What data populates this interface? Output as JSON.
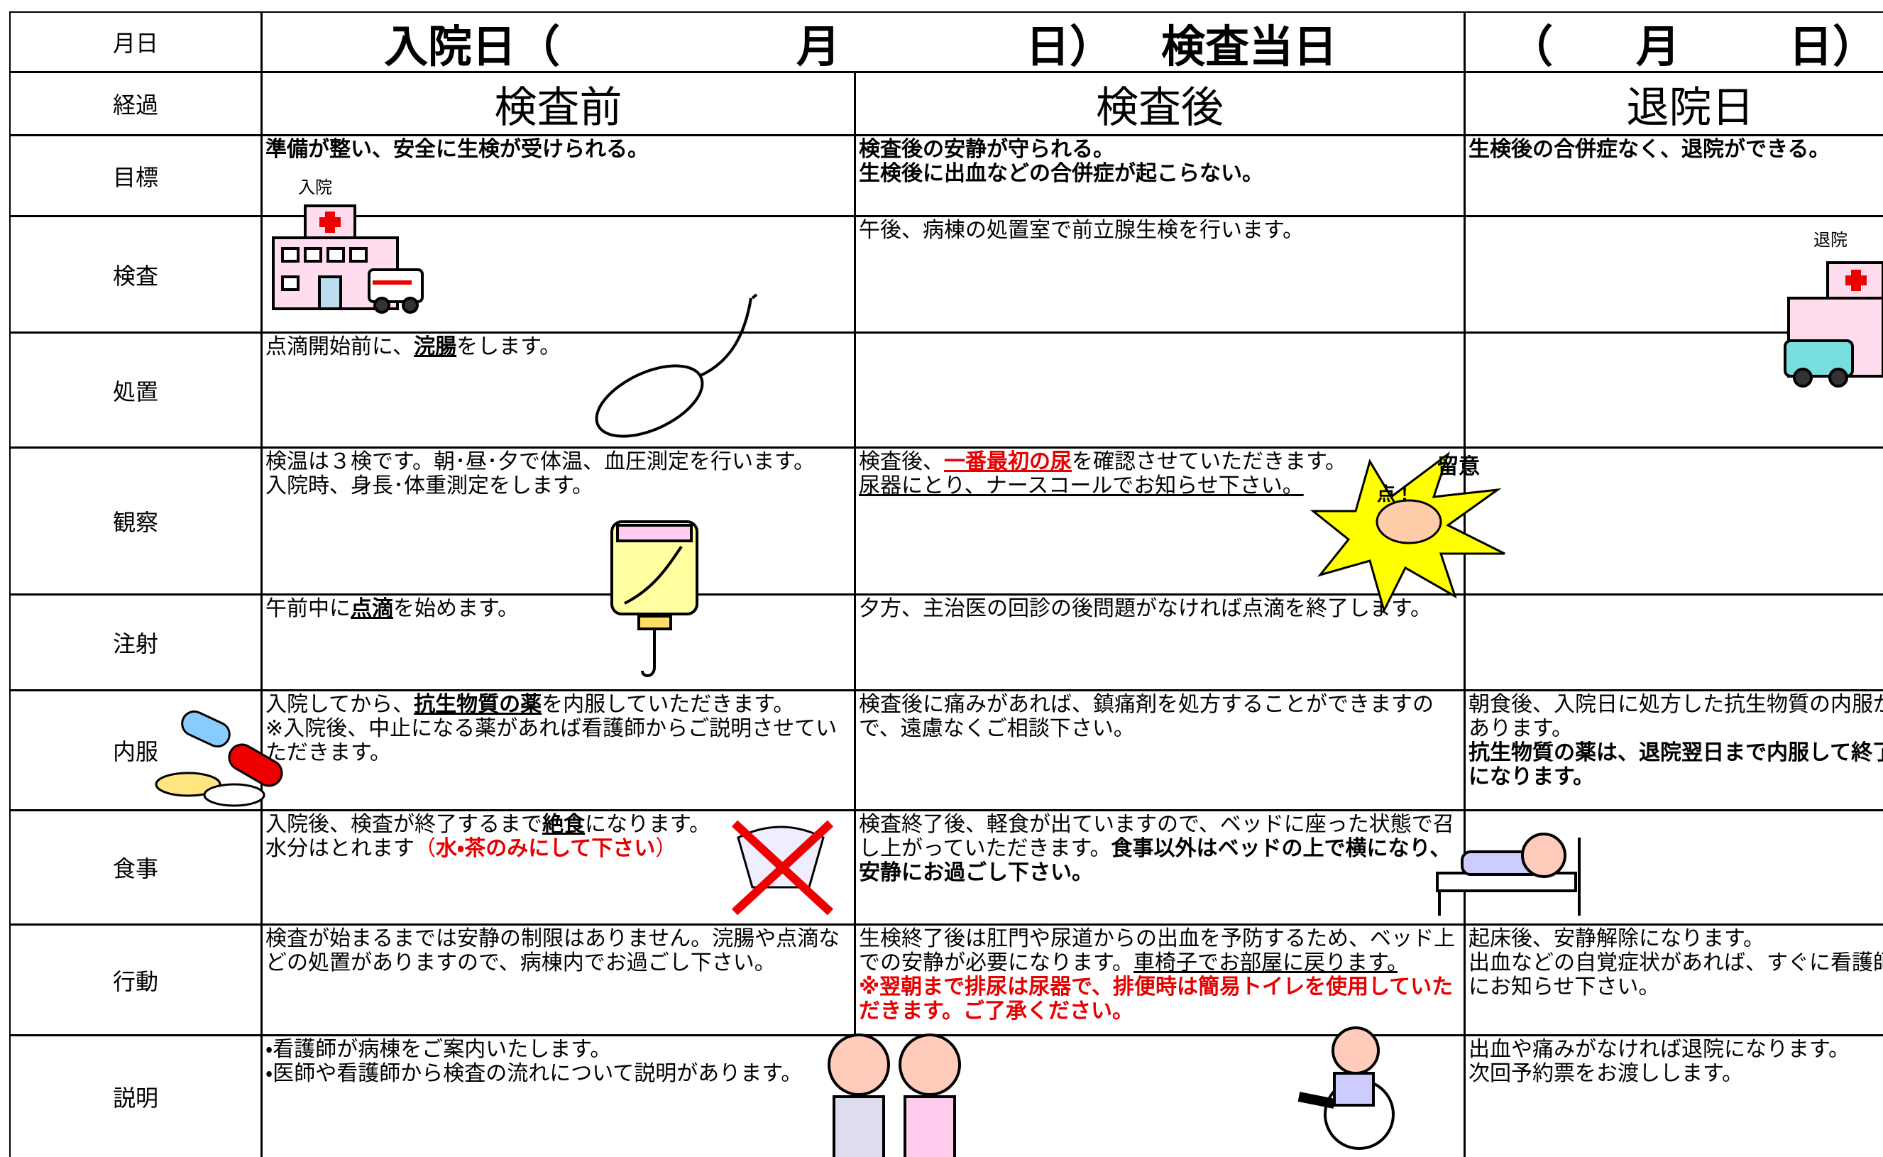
{
  "header": {
    "label": "月日",
    "parts": [
      "入院日（",
      "月",
      "日）",
      "検査当日",
      "（",
      "月",
      "日）"
    ]
  },
  "phase_row": {
    "label": "経過",
    "phases": [
      "検査前",
      "検査後",
      "退院日"
    ]
  },
  "rows": [
    {
      "label": "目標",
      "cells": [
        [
          [
            {
              "text": "準備が整い、安全に生検が受けられる。",
              "bold": true
            }
          ]
        ],
        [
          [
            {
              "text": "検査後の安静が守られる。",
              "bold": true
            }
          ],
          [
            {
              "text": "生検後に出血などの合併症が起こらない。",
              "bold": true
            }
          ]
        ],
        [
          [
            {
              "text": "生検後の合併症なく、退院ができる。",
              "bold": true
            }
          ]
        ]
      ]
    },
    {
      "label": "検査",
      "cells": [
        [],
        [
          [
            {
              "text": "午後、病棟の処置室で前立腺生検を行います。"
            }
          ]
        ],
        []
      ]
    },
    {
      "label": "処置",
      "cells": [
        [
          [
            {
              "text": "点滴開始前に、"
            },
            {
              "text": "浣腸",
              "bold": true,
              "underline": true
            },
            {
              "text": "をします。"
            }
          ]
        ],
        [],
        []
      ]
    },
    {
      "label": "観察",
      "cells": [
        [
          [
            {
              "text": "検温は３検です。朝･昼･夕で体温、血圧測定を行います。"
            }
          ],
          [
            {
              "text": "入院時、身長･体重測定をします。"
            }
          ]
        ],
        [
          [
            {
              "text": "検査後、"
            },
            {
              "text": "一番最初の尿",
              "bold": true,
              "underline": true,
              "red": true
            },
            {
              "text": "を確認させていただきます。"
            }
          ],
          [
            {
              "text": "尿器にとり、ナースコールでお知らせ下さい。",
              "underline": true
            }
          ]
        ],
        []
      ]
    },
    {
      "label": "注射",
      "cells": [
        [
          [
            {
              "text": "午前中に"
            },
            {
              "text": "点滴",
              "bold": true,
              "underline": true
            },
            {
              "text": "を始めます。"
            }
          ]
        ],
        [
          [
            {
              "text": "夕方、主治医の回診の後問題がなければ点滴を終了します。"
            }
          ]
        ],
        []
      ]
    },
    {
      "label": "内服",
      "cells": [
        [
          [
            {
              "text": "入院してから、"
            },
            {
              "text": "抗生物質の薬",
              "bold": true,
              "underline": true
            },
            {
              "text": "を内服していただきます。"
            }
          ],
          [
            {
              "text": "※入院後、中止になる薬があれば看護師からご説明させていただきます。"
            }
          ]
        ],
        [
          [
            {
              "text": "検査後に痛みがあれば、鎮痛剤を処方することができますので、遠慮なくご相談下さい。"
            }
          ]
        ],
        [
          [
            {
              "text": "朝食後、入院日に処方した抗生物質の内服があります。"
            }
          ],
          [
            {
              "text": "抗生物質の薬は、退院翌日まで内服して終了になります。",
              "bold": true
            }
          ]
        ]
      ]
    },
    {
      "label": "食事",
      "cells": [
        [
          [
            {
              "text": "入院後、検査が終了するまで"
            },
            {
              "text": "絶食",
              "bold": true,
              "underline": true
            },
            {
              "text": "になります。"
            }
          ],
          [
            {
              "text": "水分はとれます"
            },
            {
              "text": "（",
              "red": true
            },
            {
              "text": "水・茶のみにして下さい",
              "bold": true,
              "red": true
            },
            {
              "text": "）",
              "red": true
            }
          ]
        ],
        [
          [
            {
              "text": "検査終了後、軽食が出ていますので、ベッドに座った状態で召し上がっていただきます。"
            },
            {
              "text": "食事以外はベッドの上で横になり、安静にお過ごし下さい。",
              "bold": true
            }
          ]
        ],
        []
      ]
    },
    {
      "label": "行動",
      "cells": [
        [
          [
            {
              "text": "検査が始まるまでは安静の制限はありません。浣腸や点滴などの処置がありますので、病棟内でお過ごし下さい。"
            }
          ]
        ],
        [
          [
            {
              "text": "生検終了後は肛門や尿道からの出血を予防するため、ベッド上での安静が必要になります。"
            },
            {
              "text": "車椅子でお部屋に戻ります。",
              "underline": true
            },
            {
              "text": "　　　　※翌朝まで排尿は尿器で、排便時は簡易トイレを使用していただきます。ご了承ください。",
              "bold": true,
              "red": true
            }
          ]
        ],
        [
          [
            {
              "text": "起床後、安静解除になります。"
            }
          ],
          [
            {
              "text": "出血などの自覚症状があれば、すぐに看護師にお知らせ下さい。"
            }
          ]
        ]
      ]
    },
    {
      "label": "説明",
      "cells": [
        [
          [
            {
              "text": "・看護師が病棟をご案内いたします。"
            }
          ],
          [
            {
              "text": "・医師や看護師から検査の流れについて説明があります。"
            }
          ]
        ],
        [],
        [
          [
            {
              "text": "出血や痛みがなければ退院になります。"
            }
          ],
          [
            {
              "text": "次回予約票をお渡しします。"
            }
          ]
        ]
      ]
    }
  ],
  "illustration_labels": {
    "admission": "入院",
    "discharge": "退院",
    "caution": "留意",
    "point": "点！"
  }
}
